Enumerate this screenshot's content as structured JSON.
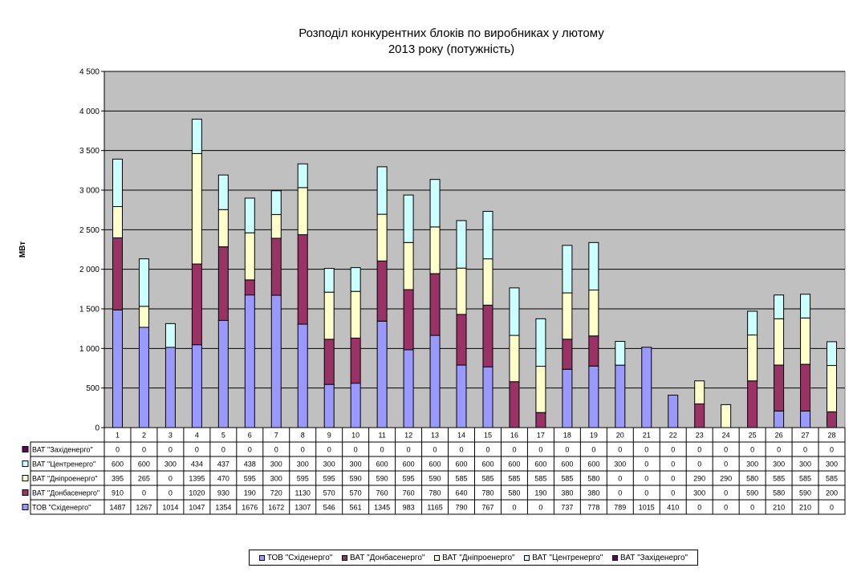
{
  "chart_data": {
    "type": "bar",
    "stacked": true,
    "title": [
      "Розподіл конкурентних блоків по виробниках у лютому",
      "2013 року (потужність)"
    ],
    "ylabel": "МВт",
    "xlabel": "",
    "ylim": [
      0,
      4500
    ],
    "yticks": [
      0,
      500,
      1000,
      1500,
      2000,
      2500,
      3000,
      3500,
      4000,
      4500
    ],
    "ytick_labels": [
      "0",
      "500",
      "1 000",
      "1 500",
      "2 000",
      "2 500",
      "3 000",
      "3 500",
      "4 000",
      "4 500"
    ],
    "grid": true,
    "plot_background": "#C0C0C0",
    "legend_position": "bottom",
    "categories": [
      "1",
      "2",
      "3",
      "4",
      "5",
      "6",
      "7",
      "8",
      "9",
      "10",
      "11",
      "12",
      "13",
      "14",
      "15",
      "16",
      "17",
      "18",
      "19",
      "20",
      "21",
      "22",
      "23",
      "24",
      "25",
      "26",
      "27",
      "28"
    ],
    "series": [
      {
        "name": "ТОВ \"Східенерго\"",
        "color": "#9999FF",
        "values": [
          1487,
          1267,
          1014,
          1047,
          1354,
          1676,
          1672,
          1307,
          546,
          561,
          1345,
          983,
          1165,
          790,
          767,
          0,
          0,
          737,
          778,
          789,
          1015,
          410,
          0,
          0,
          0,
          210,
          210,
          0
        ]
      },
      {
        "name": "ВАТ \"Донбасенерго\"",
        "color": "#993366",
        "values": [
          910,
          0,
          0,
          1020,
          930,
          190,
          720,
          1130,
          570,
          570,
          760,
          760,
          780,
          640,
          780,
          580,
          190,
          380,
          380,
          0,
          0,
          0,
          300,
          0,
          590,
          580,
          590,
          200
        ]
      },
      {
        "name": "ВАТ \"Дніпроенерго\"",
        "color": "#FFFFCC",
        "values": [
          395,
          265,
          0,
          1395,
          470,
          595,
          300,
          595,
          595,
          590,
          590,
          595,
          590,
          585,
          585,
          585,
          585,
          585,
          580,
          0,
          0,
          0,
          290,
          290,
          580,
          585,
          585,
          585
        ]
      },
      {
        "name": "ВАТ \"Центренерго\"",
        "color": "#CCFFFF",
        "values": [
          600,
          600,
          300,
          434,
          437,
          438,
          300,
          300,
          300,
          300,
          600,
          600,
          600,
          600,
          600,
          600,
          600,
          600,
          600,
          300,
          0,
          0,
          0,
          0,
          300,
          300,
          300,
          300
        ]
      },
      {
        "name": "ВАТ \"Західенерго\"",
        "color": "#660066",
        "values": [
          0,
          0,
          0,
          0,
          0,
          0,
          0,
          0,
          0,
          0,
          0,
          0,
          0,
          0,
          0,
          0,
          0,
          0,
          0,
          0,
          0,
          0,
          0,
          0,
          0,
          0,
          0,
          0
        ]
      }
    ],
    "table_row_order": [
      4,
      3,
      2,
      1,
      0
    ]
  }
}
